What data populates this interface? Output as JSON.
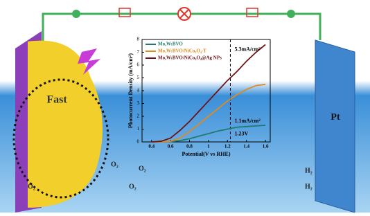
{
  "chart_data": {
    "type": "line",
    "x_label": "Potential(V vs RHE)",
    "y_label": "Photocurrent Density (mA/cm²)",
    "x": [
      0.4,
      0.5,
      0.6,
      0.7,
      0.8,
      0.9,
      1.0,
      1.1,
      1.2,
      1.3,
      1.4,
      1.5,
      1.6
    ],
    "series": [
      {
        "name": "Mo,W:BVO",
        "color": "#1f7a6e",
        "values": [
          0,
          0,
          0.02,
          0.1,
          0.25,
          0.45,
          0.65,
          0.85,
          1.0,
          1.15,
          1.2,
          1.25,
          1.3
        ]
      },
      {
        "name": "Mo,W:BVO/NiCo₂O₄-T",
        "color": "#e08a1e",
        "values": [
          0,
          0,
          0.05,
          0.3,
          0.8,
          1.4,
          2.0,
          2.6,
          3.2,
          3.7,
          4.1,
          4.4,
          4.5
        ]
      },
      {
        "name": "Mo,W:BVO/NiCo₂O₄@Ag NPs",
        "color": "#6b1216",
        "values": [
          0,
          0.05,
          0.3,
          0.9,
          1.6,
          2.4,
          3.2,
          4.0,
          4.8,
          5.5,
          6.3,
          7.0,
          7.6
        ]
      }
    ],
    "xlim": [
      0.3,
      1.65
    ],
    "ylim": [
      0,
      8
    ],
    "xticks": [
      0.4,
      0.6,
      0.8,
      1.0,
      1.2,
      1.4,
      1.6
    ],
    "yticks": [
      0,
      1,
      2,
      3,
      4,
      5,
      6,
      7,
      8
    ],
    "legend": "upper left",
    "reference_x": 1.23,
    "annotations": [
      "5.3mA/cm²",
      "1.1mA/cm²",
      "1.23V"
    ]
  },
  "labels": {
    "photoanode": "Fast",
    "cathode": "Pt",
    "oxygen": [
      "O₂",
      "O₂",
      "O₂",
      "O₂"
    ],
    "hydrogen": [
      "H₂",
      "H₂"
    ]
  }
}
